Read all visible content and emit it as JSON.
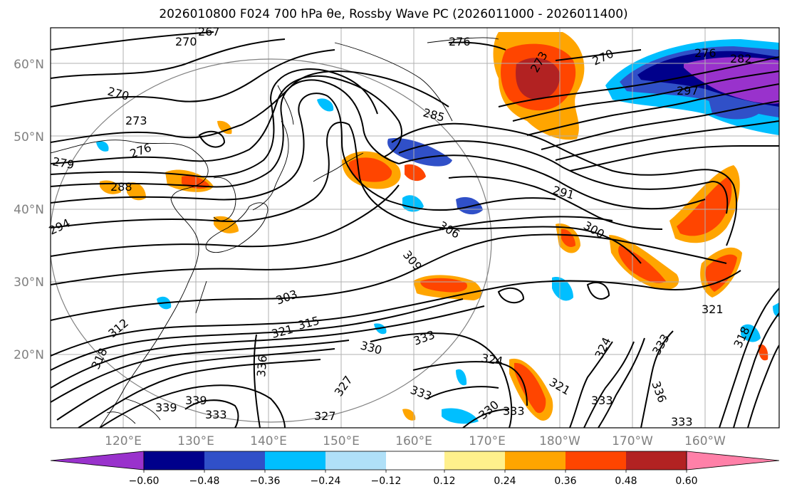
{
  "title": "2026010800 F024 700 hPa θe, Rossby Wave PC (2026011000 - 2026011400)",
  "axes": {
    "lat_labels": [
      "60°N",
      "50°N",
      "40°N",
      "30°N",
      "20°N"
    ],
    "lon_labels": [
      "120°E",
      "130°E",
      "140°E",
      "150°E",
      "160°E",
      "170°E",
      "180°W",
      "170°W",
      "160°W"
    ],
    "tick_color": "#808080"
  },
  "colorbar": {
    "ticks": [
      "−0.60",
      "−0.48",
      "−0.36",
      "−0.24",
      "−0.12",
      "0.12",
      "0.24",
      "0.36",
      "0.48",
      "0.60"
    ],
    "colors": [
      "#9932cc",
      "#00008b",
      "#3050c8",
      "#00bfff",
      "#b0e0f8",
      "#ffffff",
      "#fff08c",
      "#ffa500",
      "#ff4500",
      "#b22222",
      "#ff80a8"
    ]
  },
  "contour_labels": [
    {
      "text": "267"
    },
    {
      "text": "270"
    },
    {
      "text": "276"
    },
    {
      "text": "270"
    },
    {
      "text": "273"
    },
    {
      "text": "270"
    },
    {
      "text": "276"
    },
    {
      "text": "282"
    },
    {
      "text": "297"
    },
    {
      "text": "285"
    },
    {
      "text": "273"
    },
    {
      "text": "276"
    },
    {
      "text": "279"
    },
    {
      "text": "288"
    },
    {
      "text": "291"
    },
    {
      "text": "294"
    },
    {
      "text": "300"
    },
    {
      "text": "306"
    },
    {
      "text": "309"
    },
    {
      "text": "303"
    },
    {
      "text": "315"
    },
    {
      "text": "321"
    },
    {
      "text": "330"
    },
    {
      "text": "333"
    },
    {
      "text": "324"
    },
    {
      "text": "336"
    },
    {
      "text": "339"
    },
    {
      "text": "339"
    },
    {
      "text": "333"
    },
    {
      "text": "327"
    },
    {
      "text": "327"
    },
    {
      "text": "333"
    },
    {
      "text": "330"
    },
    {
      "text": "333"
    },
    {
      "text": "321"
    },
    {
      "text": "333"
    },
    {
      "text": "336"
    },
    {
      "text": "333"
    },
    {
      "text": "333"
    },
    {
      "text": "318"
    },
    {
      "text": "321"
    },
    {
      "text": "324"
    },
    {
      "text": "318"
    },
    {
      "text": "312"
    }
  ]
}
